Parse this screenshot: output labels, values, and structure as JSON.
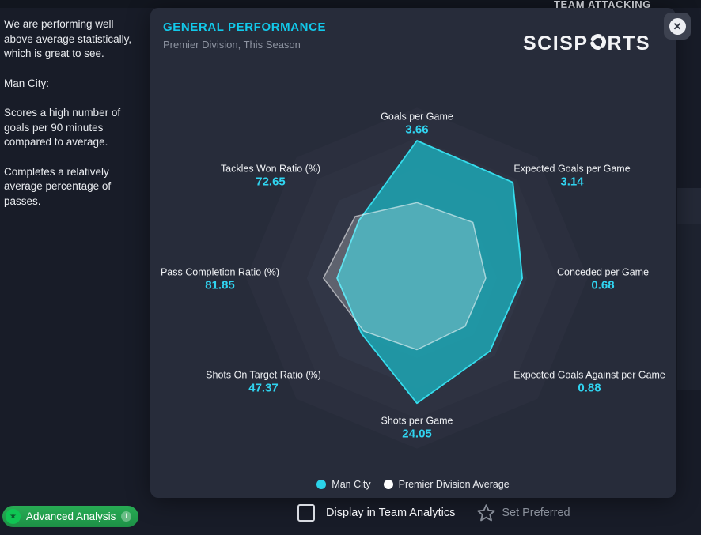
{
  "window": {
    "clipped_tab_text": "TEAM ATTACKING"
  },
  "sidebar": {
    "paragraphs": [
      "We are performing well above average statistically, which is great to see.",
      "Man City:",
      "Scores a high number of goals per 90 minutes compared to average.",
      "Completes a relatively average percentage of passes."
    ]
  },
  "modal": {
    "title": "GENERAL PERFORMANCE",
    "subtitle": "Premier Division, This Season",
    "brand_prefix": "SCISP",
    "brand_suffix": "RTS",
    "close_icon": "✕"
  },
  "chart_data": {
    "type": "radar",
    "title": "GENERAL PERFORMANCE",
    "subtitle": "Premier Division, This Season",
    "grid": "concentric-octagon-rings",
    "legend_position": "bottom",
    "series": [
      {
        "name": "Man City",
        "color": "#2bd3e9"
      },
      {
        "name": "Premier Division Average",
        "color": "#ffffff"
      }
    ],
    "axes": [
      {
        "label": "Goals per Game",
        "value": "3.66",
        "team": 1.0,
        "avg": 0.55
      },
      {
        "label": "Expected Goals per Game",
        "value": "3.14",
        "team": 0.985,
        "avg": 0.575
      },
      {
        "label": "Conceded per Game",
        "value": "0.68",
        "team": 0.765,
        "avg": 0.5
      },
      {
        "label": "Expected Goals Against per Game",
        "value": "0.88",
        "team": 0.75,
        "avg": 0.495
      },
      {
        "label": "Shots per Game",
        "value": "24.05",
        "team": 0.91,
        "avg": 0.52
      },
      {
        "label": "Shots On Target Ratio (%)",
        "value": "47.37",
        "team": 0.57,
        "avg": 0.545
      },
      {
        "label": "Pass Completion Ratio (%)",
        "value": "81.85",
        "team": 0.58,
        "avg": 0.68
      },
      {
        "label": "Tackles Won Ratio (%)",
        "value": "72.65",
        "team": 0.595,
        "avg": 0.635
      }
    ],
    "colors": {
      "team_fill": "#1ea3b0",
      "team_stroke": "#36dcec",
      "avg_fill": "#ffffff",
      "avg_stroke": "#ffffff"
    }
  },
  "footer": {
    "checkbox_label": "Display in Team Analytics",
    "checkbox_checked": false,
    "set_preferred_label": "Set Preferred"
  },
  "advanced_analysis": {
    "label": "Advanced Analysis"
  }
}
